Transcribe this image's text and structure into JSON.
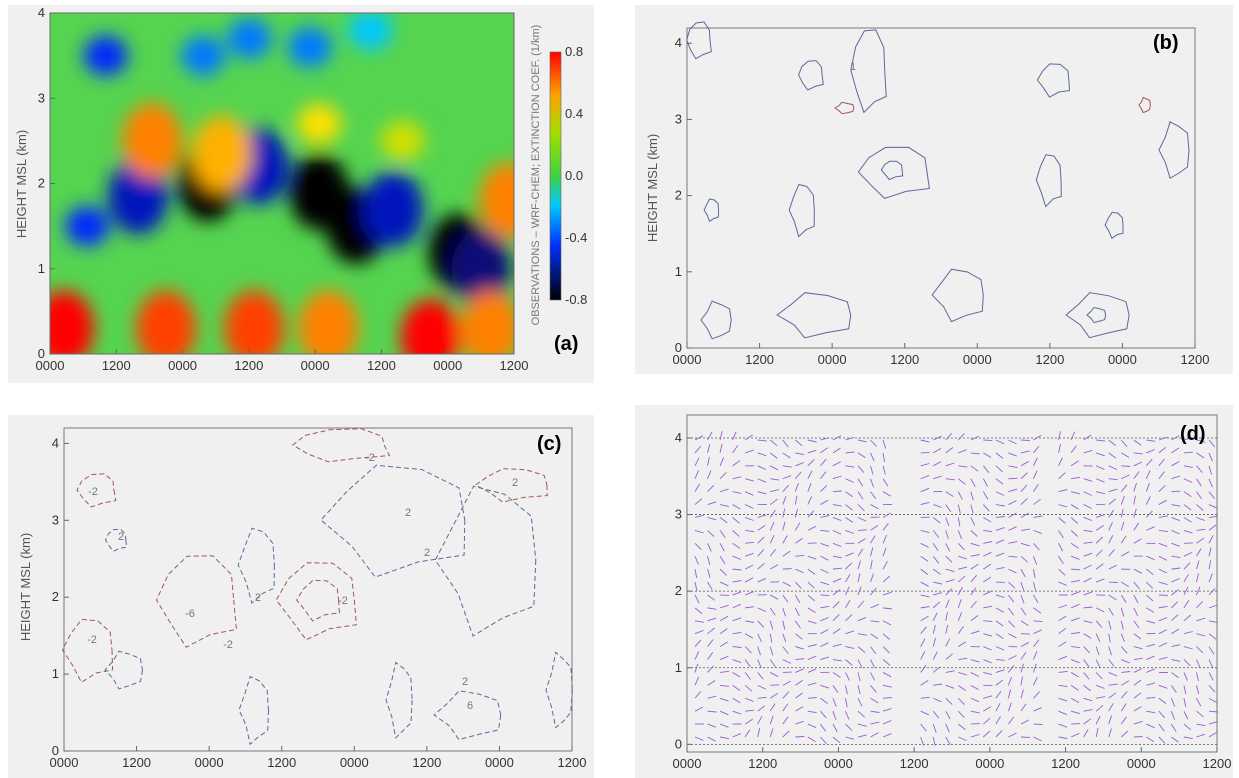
{
  "chart_data": [
    {
      "panel": "(a)",
      "type": "heatmap",
      "ylabel": "HEIGHT MSL (km)",
      "xlabel": "",
      "x_ticks": [
        "0000",
        "1200",
        "0000",
        "1200",
        "0000",
        "1200",
        "0000",
        "1200"
      ],
      "y_ticks": [
        "0",
        "1",
        "2",
        "3",
        "4"
      ],
      "ylim": [
        0,
        4
      ],
      "colorbar": {
        "label": "OBSERVATIONS – WRF-CHEM; EXTINCTION COEF. (1/km)",
        "ticks": [
          "0.8",
          "0.4",
          "0.0",
          "-0.4",
          "-0.8"
        ],
        "range": [
          -0.8,
          0.8
        ]
      },
      "features": [
        {
          "x": 0.08,
          "y": 1.5,
          "value": -0.4
        },
        {
          "x": 0.19,
          "y": 1.85,
          "value": -0.5
        },
        {
          "x": 0.34,
          "y": 2.0,
          "value": -0.8
        },
        {
          "x": 0.45,
          "y": 2.2,
          "value": -0.5
        },
        {
          "x": 0.58,
          "y": 1.9,
          "value": -0.8
        },
        {
          "x": 0.66,
          "y": 1.5,
          "value": -0.8
        },
        {
          "x": 0.74,
          "y": 1.7,
          "value": -0.5
        },
        {
          "x": 0.88,
          "y": 1.2,
          "value": -0.8
        },
        {
          "x": 0.93,
          "y": 1.0,
          "value": -0.6
        },
        {
          "x": 0.12,
          "y": 3.5,
          "value": -0.4
        },
        {
          "x": 0.33,
          "y": 3.5,
          "value": -0.3
        },
        {
          "x": 0.43,
          "y": 3.7,
          "value": -0.3
        },
        {
          "x": 0.56,
          "y": 3.6,
          "value": -0.3
        },
        {
          "x": 0.69,
          "y": 3.8,
          "value": -0.2
        },
        {
          "x": 0.03,
          "y": 0.3,
          "value": 0.8
        },
        {
          "x": 0.25,
          "y": 0.3,
          "value": 0.7
        },
        {
          "x": 0.44,
          "y": 0.3,
          "value": 0.7
        },
        {
          "x": 0.6,
          "y": 0.3,
          "value": 0.6
        },
        {
          "x": 0.82,
          "y": 0.2,
          "value": 0.8
        },
        {
          "x": 0.95,
          "y": 0.3,
          "value": 0.6
        },
        {
          "x": 0.22,
          "y": 2.5,
          "value": 0.6
        },
        {
          "x": 0.37,
          "y": 2.35,
          "value": 0.5
        },
        {
          "x": 0.58,
          "y": 2.7,
          "value": 0.4
        },
        {
          "x": 0.76,
          "y": 2.5,
          "value": 0.3
        },
        {
          "x": 0.99,
          "y": 1.8,
          "value": 0.6
        }
      ]
    },
    {
      "panel": "(b)",
      "type": "contour",
      "ylabel": "HEIGHT MSL (km)",
      "x_ticks": [
        "0000",
        "1200",
        "0000",
        "1200",
        "0000",
        "1200",
        "0000",
        "1200"
      ],
      "y_ticks": [
        "0",
        "1",
        "2",
        "3",
        "4"
      ],
      "ylim": [
        0,
        4.2
      ],
      "contour_labels": [
        "1"
      ]
    },
    {
      "panel": "(c)",
      "type": "contour",
      "ylabel": "HEIGHT MSL (km)",
      "x_ticks": [
        "0000",
        "1200",
        "0000",
        "1200",
        "0000",
        "1200",
        "0000",
        "1200"
      ],
      "y_ticks": [
        "0",
        "1",
        "2",
        "3",
        "4"
      ],
      "ylim": [
        0,
        4.2
      ],
      "contour_labels": [
        "-2",
        "2",
        "-6",
        "-2",
        "2",
        "-2",
        "-2",
        "2",
        "2",
        "2",
        "-2",
        "6",
        "2"
      ]
    },
    {
      "panel": "(d)",
      "type": "vector-field",
      "ylabel": "",
      "x_ticks": [
        "0000",
        "1200",
        "0000",
        "1200",
        "0000",
        "1200",
        "0000",
        "1200"
      ],
      "y_ticks": [
        "0",
        "1",
        "2",
        "3",
        "4"
      ],
      "ylim": [
        -0.1,
        4.3
      ],
      "reference_levels": [
        0,
        1,
        2,
        3,
        4
      ]
    }
  ],
  "colors": {
    "panel_bg": "#f0f0f0",
    "contour_blue": "#5a6a9a",
    "contour_red": "#a05858",
    "vector": "#9a5ad8"
  }
}
